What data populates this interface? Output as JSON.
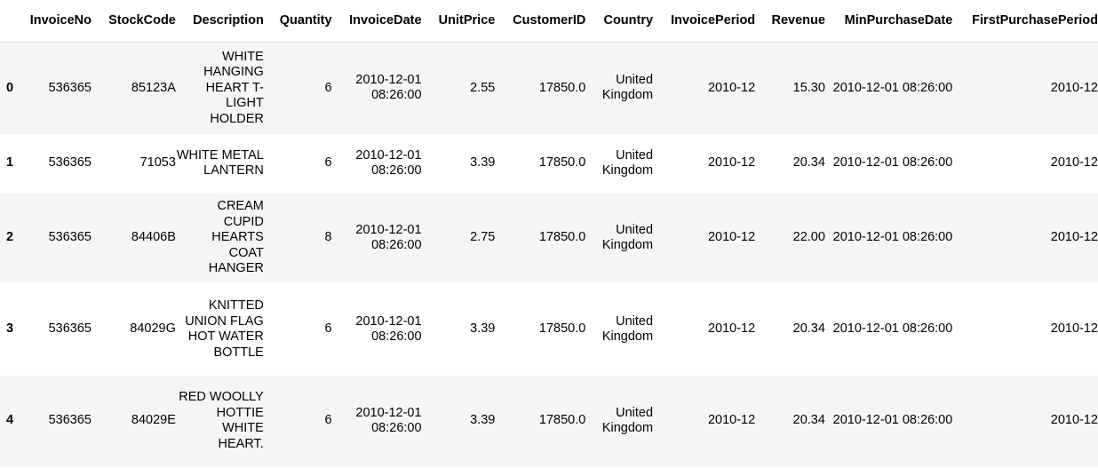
{
  "table": {
    "columns": [
      "",
      "InvoiceNo",
      "StockCode",
      "Description",
      "Quantity",
      "InvoiceDate",
      "UnitPrice",
      "CustomerID",
      "Country",
      "InvoicePeriod",
      "Revenue",
      "MinPurchaseDate",
      "FirstPurchasePeriod"
    ],
    "rows": [
      {
        "index": "0",
        "InvoiceNo": "536365",
        "StockCode": "85123A",
        "Description": "WHITE HANGING HEART T-LIGHT HOLDER",
        "Quantity": "6",
        "InvoiceDate": "2010-12-01 08:26:00",
        "UnitPrice": "2.55",
        "CustomerID": "17850.0",
        "Country": "United Kingdom",
        "InvoicePeriod": "2010-12",
        "Revenue": "15.30",
        "MinPurchaseDate": "2010-12-01 08:26:00",
        "FirstPurchasePeriod": "2010-12"
      },
      {
        "index": "1",
        "InvoiceNo": "536365",
        "StockCode": "71053",
        "Description": "WHITE METAL LANTERN",
        "Quantity": "6",
        "InvoiceDate": "2010-12-01 08:26:00",
        "UnitPrice": "3.39",
        "CustomerID": "17850.0",
        "Country": "United Kingdom",
        "InvoicePeriod": "2010-12",
        "Revenue": "20.34",
        "MinPurchaseDate": "2010-12-01 08:26:00",
        "FirstPurchasePeriod": "2010-12"
      },
      {
        "index": "2",
        "InvoiceNo": "536365",
        "StockCode": "84406B",
        "Description": "CREAM CUPID HEARTS COAT HANGER",
        "Quantity": "8",
        "InvoiceDate": "2010-12-01 08:26:00",
        "UnitPrice": "2.75",
        "CustomerID": "17850.0",
        "Country": "United Kingdom",
        "InvoicePeriod": "2010-12",
        "Revenue": "22.00",
        "MinPurchaseDate": "2010-12-01 08:26:00",
        "FirstPurchasePeriod": "2010-12"
      },
      {
        "index": "3",
        "InvoiceNo": "536365",
        "StockCode": "84029G",
        "Description": "KNITTED UNION FLAG HOT WATER BOTTLE",
        "Quantity": "6",
        "InvoiceDate": "2010-12-01 08:26:00",
        "UnitPrice": "3.39",
        "CustomerID": "17850.0",
        "Country": "United Kingdom",
        "InvoicePeriod": "2010-12",
        "Revenue": "20.34",
        "MinPurchaseDate": "2010-12-01 08:26:00",
        "FirstPurchasePeriod": "2010-12"
      },
      {
        "index": "4",
        "InvoiceNo": "536365",
        "StockCode": "84029E",
        "Description": "RED WOOLLY HOTTIE WHITE HEART.",
        "Quantity": "6",
        "InvoiceDate": "2010-12-01 08:26:00",
        "UnitPrice": "3.39",
        "CustomerID": "17850.0",
        "Country": "United Kingdom",
        "InvoicePeriod": "2010-12",
        "Revenue": "20.34",
        "MinPurchaseDate": "2010-12-01 08:26:00",
        "FirstPurchasePeriod": "2010-12"
      }
    ]
  },
  "colors": {
    "stripe": "#f5f5f5",
    "background": "#ffffff",
    "header_rule": "#d7d7d7"
  }
}
